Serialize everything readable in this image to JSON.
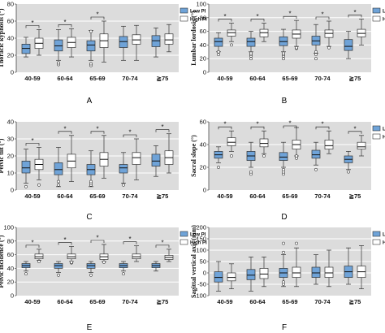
{
  "colors": {
    "low": "#6fa3d8",
    "high": "#ffffff",
    "plot_bg": "#dcdcdc",
    "grid": "#ffffff",
    "stroke": "#333333"
  },
  "legend": {
    "low": "Low PI",
    "high": "High PI"
  },
  "chart_data": [
    {
      "type": "box",
      "panel": "A",
      "ylabel": "Thoracic kyphosis (°)",
      "ylim": [
        0,
        80
      ],
      "yticks": [
        0,
        20,
        40,
        60,
        80
      ],
      "categories": [
        "40-59",
        "60-64",
        "65-69",
        "70-74",
        "≧75"
      ],
      "legend": true,
      "significant": [
        true,
        true,
        true,
        false,
        false
      ],
      "series": [
        {
          "name": "Low PI",
          "boxes": [
            {
              "min": 18,
              "q1": 22,
              "median": 28,
              "q3": 33,
              "max": 41,
              "outliers": []
            },
            {
              "min": 14,
              "q1": 25,
              "median": 31,
              "q3": 38,
              "max": 50,
              "outliers": [
                9,
                11
              ]
            },
            {
              "min": 14,
              "q1": 25,
              "median": 32,
              "q3": 37,
              "max": 49,
              "outliers": [
                8,
                10,
                48
              ]
            },
            {
              "min": 14,
              "q1": 29,
              "median": 36,
              "q3": 42,
              "max": 54,
              "outliers": []
            },
            {
              "min": 18,
              "q1": 30,
              "median": 37,
              "q3": 43,
              "max": 52,
              "outliers": []
            }
          ]
        },
        {
          "name": "High PI",
          "boxes": [
            {
              "min": 20,
              "q1": 28,
              "median": 34,
              "q3": 40,
              "max": 50,
              "outliers": []
            },
            {
              "min": 18,
              "q1": 29,
              "median": 35,
              "q3": 41,
              "max": 51,
              "outliers": []
            },
            {
              "min": 12,
              "q1": 29,
              "median": 37,
              "q3": 45,
              "max": 60,
              "outliers": []
            },
            {
              "min": 14,
              "q1": 33,
              "median": 38,
              "q3": 44,
              "max": 55,
              "outliers": []
            },
            {
              "min": 24,
              "q1": 33,
              "median": 38,
              "q3": 45,
              "max": 56,
              "outliers": []
            }
          ]
        }
      ]
    },
    {
      "type": "box",
      "panel": "B",
      "ylabel": "Lumbar lordosis (°)",
      "ylim": [
        0,
        100
      ],
      "yticks": [
        0,
        20,
        40,
        60,
        80,
        100
      ],
      "categories": [
        "40-59",
        "60-64",
        "65-69",
        "70-74",
        "≧75"
      ],
      "legend": true,
      "significant": [
        true,
        true,
        true,
        true,
        true
      ],
      "series": [
        {
          "name": "Low PI",
          "boxes": [
            {
              "min": 30,
              "q1": 38,
              "median": 45,
              "q3": 50,
              "max": 58,
              "outliers": [
                26,
                30
              ]
            },
            {
              "min": 30,
              "q1": 38,
              "median": 45,
              "q3": 50,
              "max": 60,
              "outliers": [
                20,
                24,
                26,
                28
              ]
            },
            {
              "min": 30,
              "q1": 39,
              "median": 45,
              "q3": 52,
              "max": 63,
              "outliers": [
                20,
                24,
                26,
                28
              ]
            },
            {
              "min": 28,
              "q1": 40,
              "median": 46,
              "q3": 53,
              "max": 70,
              "outliers": [
                20,
                26,
                30
              ]
            },
            {
              "min": 20,
              "q1": 32,
              "median": 38,
              "q3": 48,
              "max": 60,
              "outliers": []
            }
          ]
        },
        {
          "name": "High PI",
          "boxes": [
            {
              "min": 45,
              "q1": 53,
              "median": 58,
              "q3": 62,
              "max": 72,
              "outliers": [
                40
              ]
            },
            {
              "min": 45,
              "q1": 52,
              "median": 58,
              "q3": 63,
              "max": 72,
              "outliers": []
            },
            {
              "min": 38,
              "q1": 50,
              "median": 56,
              "q3": 62,
              "max": 76,
              "outliers": [
                35,
                36
              ]
            },
            {
              "min": 38,
              "q1": 51,
              "median": 57,
              "q3": 62,
              "max": 75,
              "outliers": [
                36
              ]
            },
            {
              "min": 40,
              "q1": 52,
              "median": 57,
              "q3": 63,
              "max": 78,
              "outliers": []
            }
          ]
        }
      ]
    },
    {
      "type": "box",
      "panel": "C",
      "ylabel": "Pelvic tilt (°)",
      "ylim": [
        0,
        40
      ],
      "yticks": [
        0,
        10,
        20,
        30,
        40
      ],
      "categories": [
        "40-59",
        "60-64",
        "65-69",
        "70-74",
        "≧75"
      ],
      "legend": false,
      "significant": [
        true,
        true,
        true,
        true,
        true
      ],
      "series": [
        {
          "name": "Low PI",
          "boxes": [
            {
              "min": 4,
              "q1": 10,
              "median": 13,
              "q3": 17,
              "max": 24,
              "outliers": [
                2
              ]
            },
            {
              "min": 2,
              "q1": 9,
              "median": 12,
              "q3": 16,
              "max": 25,
              "outliers": [
                3,
                5
              ]
            },
            {
              "min": 2,
              "q1": 9,
              "median": 12,
              "q3": 15,
              "max": 23,
              "outliers": [
                3,
                4,
                5
              ]
            },
            {
              "min": 4,
              "q1": 10,
              "median": 13,
              "q3": 15,
              "max": 22,
              "outliers": [
                3
              ]
            },
            {
              "min": 8,
              "q1": 14,
              "median": 17,
              "q3": 21,
              "max": 26,
              "outliers": []
            }
          ]
        },
        {
          "name": "High PI",
          "boxes": [
            {
              "min": 6,
              "q1": 12,
              "median": 15,
              "q3": 18,
              "max": 25,
              "outliers": [
                3
              ]
            },
            {
              "min": 5,
              "q1": 13,
              "median": 17,
              "q3": 21,
              "max": 32,
              "outliers": []
            },
            {
              "min": 7,
              "q1": 14,
              "median": 18,
              "q3": 22,
              "max": 32,
              "outliers": []
            },
            {
              "min": 6,
              "q1": 15,
              "median": 19,
              "q3": 22,
              "max": 30,
              "outliers": []
            },
            {
              "min": 10,
              "q1": 15,
              "median": 19,
              "q3": 23,
              "max": 33,
              "outliers": []
            }
          ]
        }
      ]
    },
    {
      "type": "box",
      "panel": "D",
      "ylabel": "Sacral slope (°)",
      "ylim": [
        0,
        60
      ],
      "yticks": [
        0,
        20,
        40,
        60
      ],
      "categories": [
        "40-59",
        "60-64",
        "65-69",
        "70-74",
        "≧75"
      ],
      "legend": true,
      "significant": [
        true,
        true,
        true,
        true,
        true
      ],
      "series": [
        {
          "name": "Low PI",
          "boxes": [
            {
              "min": 24,
              "q1": 28,
              "median": 31,
              "q3": 34,
              "max": 38,
              "outliers": [
                20
              ]
            },
            {
              "min": 20,
              "q1": 26,
              "median": 30,
              "q3": 34,
              "max": 42,
              "outliers": [
                14,
                16
              ]
            },
            {
              "min": 20,
              "q1": 26,
              "median": 29,
              "q3": 33,
              "max": 42,
              "outliers": [
                14,
                16,
                18
              ]
            },
            {
              "min": 22,
              "q1": 28,
              "median": 31,
              "q3": 35,
              "max": 42,
              "outliers": [
                18
              ]
            },
            {
              "min": 18,
              "q1": 24,
              "median": 27,
              "q3": 30,
              "max": 34,
              "outliers": [
                16
              ]
            }
          ]
        },
        {
          "name": "High PI",
          "boxes": [
            {
              "min": 34,
              "q1": 39,
              "median": 42,
              "q3": 46,
              "max": 52,
              "outliers": [
                30
              ]
            },
            {
              "min": 32,
              "q1": 38,
              "median": 41,
              "q3": 45,
              "max": 52,
              "outliers": [
                30
              ]
            },
            {
              "min": 30,
              "q1": 36,
              "median": 40,
              "q3": 44,
              "max": 55,
              "outliers": [
                28,
                30
              ]
            },
            {
              "min": 32,
              "q1": 36,
              "median": 39,
              "q3": 44,
              "max": 52,
              "outliers": []
            },
            {
              "min": 30,
              "q1": 36,
              "median": 38,
              "q3": 42,
              "max": 48,
              "outliers": []
            }
          ]
        }
      ]
    },
    {
      "type": "box",
      "panel": "E",
      "ylabel": "Pelvic incidence (°)",
      "ylim": [
        0,
        100
      ],
      "yticks": [
        0,
        20,
        40,
        60,
        80,
        100
      ],
      "categories": [
        "40-59",
        "60-64",
        "65-69",
        "70-74",
        "≧75"
      ],
      "legend": true,
      "significant": [
        true,
        true,
        true,
        true,
        true
      ],
      "series": [
        {
          "name": "Low PI",
          "boxes": [
            {
              "min": 36,
              "q1": 41,
              "median": 44,
              "q3": 47,
              "max": 50,
              "outliers": [
                32
              ]
            },
            {
              "min": 34,
              "q1": 40,
              "median": 44,
              "q3": 47,
              "max": 50,
              "outliers": [
                30
              ]
            },
            {
              "min": 34,
              "q1": 40,
              "median": 44,
              "q3": 47,
              "max": 50,
              "outliers": [
                30
              ]
            },
            {
              "min": 36,
              "q1": 41,
              "median": 44,
              "q3": 47,
              "max": 50,
              "outliers": [
                32
              ]
            },
            {
              "min": 36,
              "q1": 41,
              "median": 44,
              "q3": 47,
              "max": 50,
              "outliers": []
            }
          ]
        },
        {
          "name": "High PI",
          "boxes": [
            {
              "min": 52,
              "q1": 54,
              "median": 57,
              "q3": 61,
              "max": 68,
              "outliers": [
                50
              ]
            },
            {
              "min": 50,
              "q1": 54,
              "median": 57,
              "q3": 61,
              "max": 72,
              "outliers": [
                48,
                49
              ]
            },
            {
              "min": 50,
              "q1": 53,
              "median": 57,
              "q3": 61,
              "max": 75,
              "outliers": [
                49
              ]
            },
            {
              "min": 50,
              "q1": 54,
              "median": 57,
              "q3": 61,
              "max": 73,
              "outliers": []
            },
            {
              "min": 50,
              "q1": 53,
              "median": 56,
              "q3": 59,
              "max": 68,
              "outliers": []
            }
          ]
        }
      ]
    },
    {
      "type": "box",
      "panel": "F",
      "ylabel": "Sagittal vertical axis (mm)",
      "ylim": [
        -100,
        200
      ],
      "yticks": [
        -100,
        -50,
        0,
        50,
        100,
        150,
        200
      ],
      "categories": [
        "40-59",
        "60-64",
        "65-69",
        "70-74",
        "≧75"
      ],
      "legend": true,
      "significant": [
        false,
        false,
        false,
        false,
        false
      ],
      "series": [
        {
          "name": "Low PI",
          "boxes": [
            {
              "min": -80,
              "q1": -40,
              "median": -20,
              "q3": 5,
              "max": 50,
              "outliers": []
            },
            {
              "min": -80,
              "q1": -30,
              "median": -10,
              "q3": 15,
              "max": 70,
              "outliers": []
            },
            {
              "min": -60,
              "q1": -20,
              "median": 0,
              "q3": 20,
              "max": 80,
              "outliers": [
                -50,
                -40,
                90,
                130
              ]
            },
            {
              "min": -50,
              "q1": -20,
              "median": 0,
              "q3": 25,
              "max": 80,
              "outliers": []
            },
            {
              "min": -50,
              "q1": -20,
              "median": 5,
              "q3": 30,
              "max": 110,
              "outliers": []
            }
          ]
        },
        {
          "name": "High PI",
          "boxes": [
            {
              "min": -70,
              "q1": -35,
              "median": -20,
              "q3": 0,
              "max": 40,
              "outliers": []
            },
            {
              "min": -60,
              "q1": -25,
              "median": -5,
              "q3": 20,
              "max": 70,
              "outliers": []
            },
            {
              "min": -60,
              "q1": -20,
              "median": 0,
              "q3": 25,
              "max": 110,
              "outliers": [
                130
              ]
            },
            {
              "min": -60,
              "q1": -20,
              "median": 0,
              "q3": 25,
              "max": 100,
              "outliers": []
            },
            {
              "min": -70,
              "q1": -20,
              "median": 5,
              "q3": 30,
              "max": 120,
              "outliers": []
            }
          ]
        }
      ]
    }
  ],
  "panel_letters": [
    "A",
    "B",
    "C",
    "D",
    "E",
    "F"
  ]
}
